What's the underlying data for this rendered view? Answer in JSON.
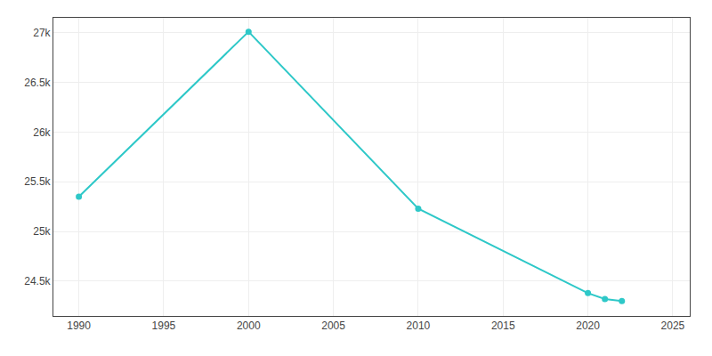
{
  "chart_data": {
    "type": "line",
    "x": [
      1990,
      2000,
      2010,
      2020,
      2021,
      2022
    ],
    "values": [
      25350,
      27010,
      25230,
      24380,
      24320,
      24300
    ],
    "color": "#2ec8c8",
    "marker": "circle",
    "xlim": [
      1988.5,
      2026
    ],
    "ylim": [
      24150,
      27150
    ],
    "xticks": [
      1990,
      1995,
      2000,
      2005,
      2010,
      2015,
      2020,
      2025
    ],
    "yticks": [
      {
        "value": 24500,
        "label": "24.5k"
      },
      {
        "value": 25000,
        "label": "25k"
      },
      {
        "value": 25500,
        "label": "25.5k"
      },
      {
        "value": 26000,
        "label": "26k"
      },
      {
        "value": 26500,
        "label": "26.5k"
      },
      {
        "value": 27000,
        "label": "27k"
      }
    ],
    "grid": true
  }
}
